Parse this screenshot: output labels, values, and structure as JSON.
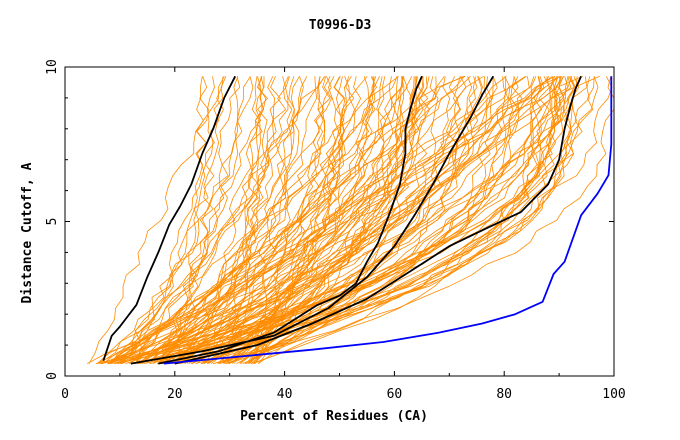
{
  "chart_data": {
    "type": "line",
    "title": "T0996-D3",
    "xlabel": "Percent of Residues (CA)",
    "ylabel": "Distance Cutoff, A",
    "xlim": [
      0,
      100
    ],
    "ylim": [
      0,
      10
    ],
    "x_ticks": [
      "0",
      "20",
      "40",
      "60",
      "80",
      "100"
    ],
    "y_ticks": [
      "0",
      "5",
      "10"
    ],
    "grid": false,
    "legend": "none",
    "colors": {
      "background_models": "#ff8c00",
      "highlight_models": "#000000",
      "best_model": "#0000ff",
      "frame": "#000000"
    },
    "background_band": {
      "count": 140,
      "seed": 12345,
      "start_x_range": [
        4,
        36
      ],
      "shape_power_range": [
        0.8,
        3.4
      ],
      "end_x_range_at_10A": [
        20,
        100
      ]
    },
    "series": [
      {
        "color": "#000000",
        "x": [
          7.0,
          8.5,
          10.0,
          13.0,
          15.0,
          17.0,
          19.0,
          21.0,
          23.0,
          25.0,
          27.0,
          29.0,
          31.0
        ],
        "y": [
          0.5,
          1.3,
          1.6,
          2.3,
          3.2,
          4.0,
          4.9,
          5.5,
          6.2,
          7.2,
          8.0,
          9.0,
          9.7
        ]
      },
      {
        "color": "#000000",
        "x": [
          17.0,
          28.0,
          38.0,
          46.0,
          50.0,
          53.0,
          55.0,
          57.0,
          59.0,
          61.0,
          62.0,
          62.0,
          63.0,
          64.0,
          65.0
        ],
        "y": [
          0.4,
          0.8,
          1.4,
          2.3,
          2.6,
          3.0,
          3.7,
          4.3,
          5.2,
          6.2,
          7.2,
          8.0,
          8.7,
          9.3,
          9.7
        ]
      },
      {
        "color": "#000000",
        "x": [
          12.0,
          25.0,
          38.0,
          48.0,
          55.0,
          60.0,
          64.0,
          67.0,
          70.0,
          72.0,
          74.0,
          76.0,
          78.0
        ],
        "y": [
          0.4,
          0.8,
          1.3,
          2.2,
          3.2,
          4.2,
          5.3,
          6.2,
          7.2,
          7.8,
          8.4,
          9.1,
          9.7
        ]
      },
      {
        "color": "#000000",
        "x": [
          20.0,
          35.0,
          45.0,
          55.0,
          63.0,
          70.0,
          77.0,
          83.0,
          88.0,
          90.0,
          91.0,
          92.0,
          93.0,
          94.0
        ],
        "y": [
          0.4,
          1.0,
          1.7,
          2.5,
          3.4,
          4.2,
          4.8,
          5.3,
          6.2,
          7.0,
          8.0,
          8.7,
          9.3,
          9.7
        ]
      },
      {
        "color": "#0000ff",
        "x": [
          18.0,
          30.0,
          45.0,
          58.0,
          68.0,
          76.0,
          82.0,
          87.0,
          89.0,
          91.0,
          94.0,
          97.0,
          99.0,
          99.5,
          99.5
        ],
        "y": [
          0.4,
          0.6,
          0.85,
          1.1,
          1.4,
          1.7,
          2.0,
          2.4,
          3.3,
          3.7,
          5.2,
          5.9,
          6.5,
          7.5,
          9.7
        ]
      }
    ]
  }
}
